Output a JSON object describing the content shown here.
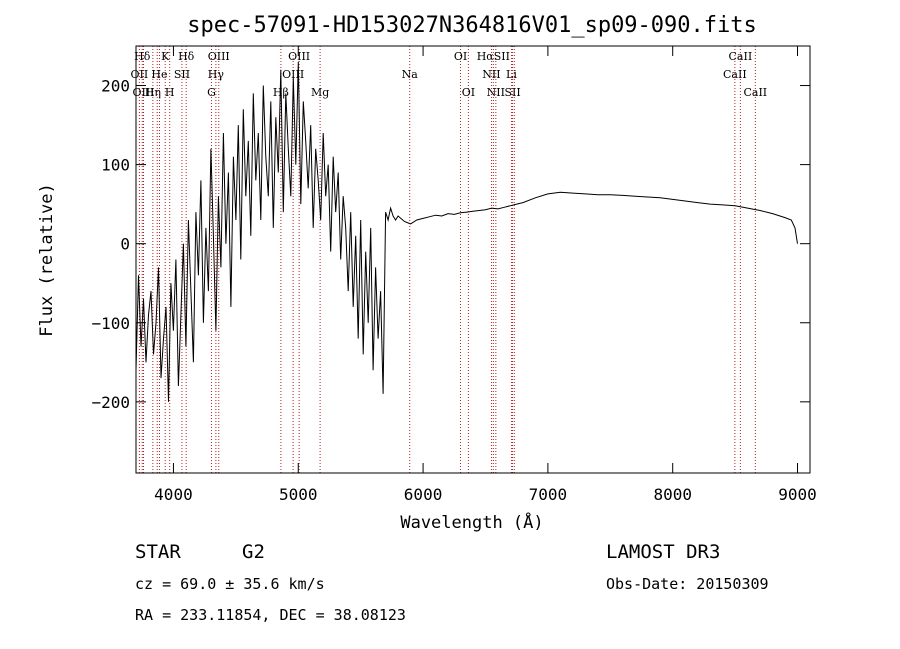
{
  "chart_data": {
    "type": "line",
    "title": "spec-57091-HD153027N364816V01_sp09-090.fits",
    "xlabel": "Wavelength (Å)",
    "ylabel": "Flux (relative)",
    "xlim": [
      3700,
      9100
    ],
    "ylim": [
      -290,
      250
    ],
    "xticks": [
      4000,
      5000,
      6000,
      7000,
      8000,
      9000
    ],
    "yticks": [
      -200,
      -100,
      0,
      100,
      200
    ],
    "series": [
      {
        "name": "spectrum",
        "x": [
          3700,
          3720,
          3740,
          3760,
          3780,
          3800,
          3820,
          3840,
          3860,
          3880,
          3900,
          3920,
          3940,
          3960,
          3980,
          4000,
          4020,
          4040,
          4060,
          4080,
          4100,
          4120,
          4140,
          4160,
          4180,
          4200,
          4220,
          4240,
          4260,
          4280,
          4300,
          4320,
          4340,
          4360,
          4380,
          4400,
          4420,
          4440,
          4460,
          4480,
          4500,
          4520,
          4540,
          4560,
          4580,
          4600,
          4620,
          4640,
          4660,
          4680,
          4700,
          4720,
          4740,
          4760,
          4780,
          4800,
          4820,
          4840,
          4860,
          4880,
          4900,
          4920,
          4940,
          4960,
          4980,
          5000,
          5020,
          5040,
          5060,
          5080,
          5100,
          5120,
          5140,
          5160,
          5180,
          5200,
          5220,
          5240,
          5260,
          5280,
          5300,
          5320,
          5340,
          5360,
          5380,
          5400,
          5420,
          5440,
          5460,
          5480,
          5500,
          5520,
          5540,
          5560,
          5580,
          5600,
          5620,
          5640,
          5660,
          5680,
          5700,
          5720,
          5740,
          5760,
          5780,
          5800,
          5850,
          5900,
          5950,
          6000,
          6050,
          6100,
          6150,
          6200,
          6250,
          6300,
          6350,
          6400,
          6450,
          6500,
          6550,
          6600,
          6650,
          6700,
          6750,
          6800,
          6900,
          7000,
          7100,
          7200,
          7300,
          7400,
          7500,
          7600,
          7700,
          7800,
          7900,
          8000,
          8100,
          8200,
          8300,
          8400,
          8500,
          8600,
          8700,
          8800,
          8900,
          8950,
          8980,
          9000
        ],
        "y": [
          -160,
          -40,
          -130,
          -70,
          -150,
          -90,
          -60,
          -140,
          -100,
          -30,
          -170,
          -120,
          -80,
          -200,
          -50,
          -110,
          -20,
          -180,
          -90,
          0,
          -130,
          30,
          -60,
          -150,
          40,
          -40,
          80,
          -100,
          20,
          -60,
          120,
          10,
          -110,
          60,
          -30,
          140,
          0,
          90,
          -80,
          110,
          30,
          150,
          -20,
          170,
          60,
          130,
          10,
          190,
          80,
          140,
          30,
          200,
          110,
          60,
          180,
          20,
          160,
          90,
          220,
          40,
          190,
          120,
          60,
          210,
          100,
          230,
          50,
          180,
          130,
          70,
          150,
          20,
          120,
          80,
          30,
          140,
          60,
          100,
          -10,
          110,
          40,
          90,
          -20,
          60,
          20,
          -60,
          40,
          -80,
          10,
          -120,
          30,
          -140,
          -10,
          -100,
          20,
          -160,
          -30,
          -120,
          -60,
          -190,
          40,
          30,
          45,
          35,
          30,
          35,
          28,
          25,
          30,
          32,
          34,
          36,
          35,
          38,
          37,
          39,
          40,
          41,
          42,
          43,
          45,
          44,
          46,
          48,
          50,
          52,
          58,
          63,
          65,
          64,
          63,
          62,
          62,
          61,
          60,
          59,
          58,
          56,
          54,
          52,
          50,
          49,
          48,
          45,
          42,
          38,
          33,
          30,
          20,
          0
        ]
      }
    ],
    "line_markers": [
      {
        "label": "Hδ",
        "x": 3750,
        "row": 0
      },
      {
        "label": "K",
        "x": 3934,
        "row": 0
      },
      {
        "label": "Hδ",
        "x": 4102,
        "row": 0
      },
      {
        "label": "OIII",
        "x": 4363,
        "row": 0
      },
      {
        "label": "OIII",
        "x": 5007,
        "row": 0
      },
      {
        "label": "OI",
        "x": 6300,
        "row": 0
      },
      {
        "label": "HαSII",
        "x": 6563,
        "row": 0
      },
      {
        "label": "CaII",
        "x": 8542,
        "row": 0
      },
      {
        "label": "OII",
        "x": 3727,
        "row": 1
      },
      {
        "label": "He",
        "x": 3888,
        "row": 1
      },
      {
        "label": "SII",
        "x": 4068,
        "row": 1
      },
      {
        "label": "Hγ",
        "x": 4340,
        "row": 1
      },
      {
        "label": "OIII",
        "x": 4959,
        "row": 1
      },
      {
        "label": "Na",
        "x": 5893,
        "row": 1
      },
      {
        "label": "NII",
        "x": 6548,
        "row": 1
      },
      {
        "label": "Li",
        "x": 6708,
        "row": 1
      },
      {
        "label": "CaII",
        "x": 8498,
        "row": 1
      },
      {
        "label": "OIII",
        "x": 3760,
        "row": 2
      },
      {
        "label": "Hη",
        "x": 3835,
        "row": 2
      },
      {
        "label": "H",
        "x": 3970,
        "row": 2
      },
      {
        "label": "G",
        "x": 4305,
        "row": 2
      },
      {
        "label": "Hβ",
        "x": 4861,
        "row": 2
      },
      {
        "label": "Mg",
        "x": 5175,
        "row": 2
      },
      {
        "label": "OI",
        "x": 6363,
        "row": 2
      },
      {
        "label": "NII",
        "x": 6583,
        "row": 2
      },
      {
        "label": "SII",
        "x": 6717,
        "row": 2
      },
      {
        "label": "CaII",
        "x": 8662,
        "row": 2
      }
    ],
    "marker_lines_x": [
      3727,
      3750,
      3760,
      3835,
      3870,
      3888,
      3934,
      3970,
      4068,
      4102,
      4305,
      4340,
      4363,
      4861,
      4959,
      5007,
      5175,
      5893,
      6300,
      6363,
      6548,
      6563,
      6583,
      6708,
      6717,
      6731,
      8498,
      8542,
      8662
    ]
  },
  "footer": {
    "object": "STAR",
    "subclass": "G2",
    "survey": "LAMOST DR3",
    "redshift": "cz = 69.0 ± 35.6 km/s",
    "obs_date": "Obs-Date: 20150309",
    "coords": "RA = 233.11854, DEC =  38.08123"
  }
}
